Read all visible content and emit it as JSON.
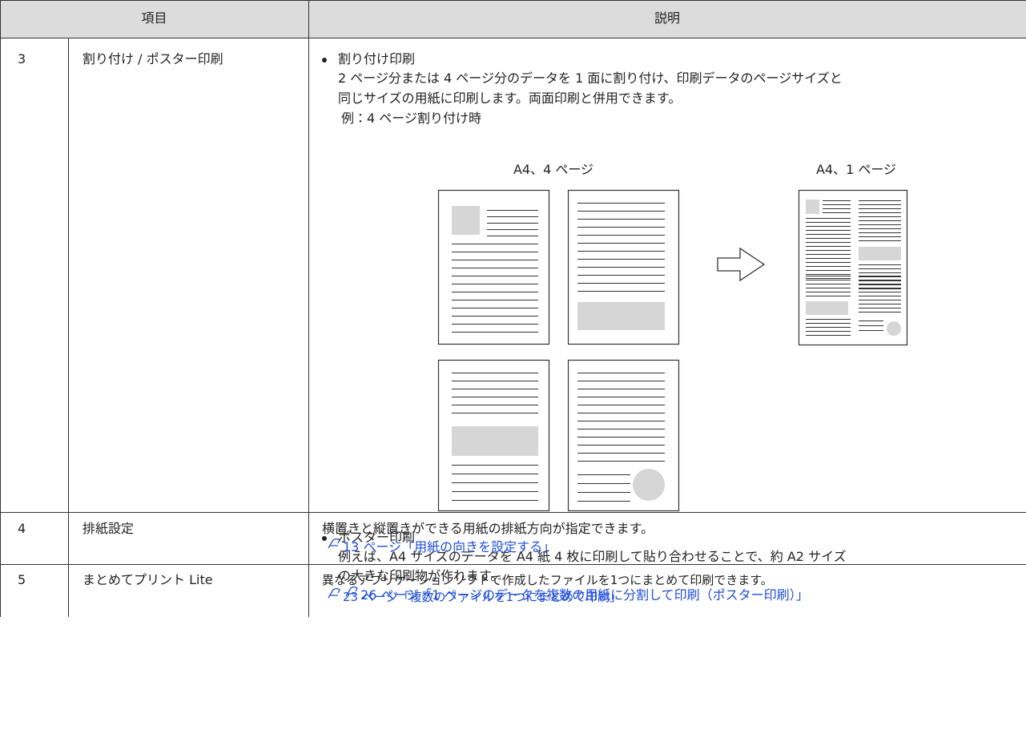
{
  "table": {
    "header": [
      "項目",
      "説明"
    ],
    "rows": [
      {
        "number": "3",
        "item": "割り付け / ポスター印刷",
        "sections": [
          {
            "title": "割り付け印刷",
            "lines": [
              "2 ページ分または 4 ページ分のデータを 1 面に割り付け、印刷データのページサイズと",
              "同じサイズの用紙に印刷します。両面印刷と併用できます。"
            ],
            "example": "例：4 ページ割り付け時",
            "figure_labels": [
              "A4、4 ページ",
              "A4、1 ページ"
            ]
          },
          {
            "title": "ポスター印刷",
            "lines": [
              "例えば、A4 サイズのデータを A4 紙 4 枚に印刷して貼り合わせることで、約 A2 サイズ",
              "の大きな印刷物が作れます。"
            ],
            "link": "26 ページ「1 ページのデータを複数の用紙に分割して印刷（ポスター印刷）」"
          }
        ]
      },
      {
        "number": "4",
        "item": "排紙設定",
        "text": "横置きと縦置きができる用紙の排紙方向が指定できます。",
        "link": "13 ページ「用紙の向きを設定する」"
      },
      {
        "number": "5",
        "item": "まとめてプリント Lite",
        "text": "異なるアプリケーションソフトで作成したファイルを1つにまとめて印刷できます。",
        "link": "23 ページ「複数のファイルを1つにまとめて印刷」"
      }
    ]
  }
}
